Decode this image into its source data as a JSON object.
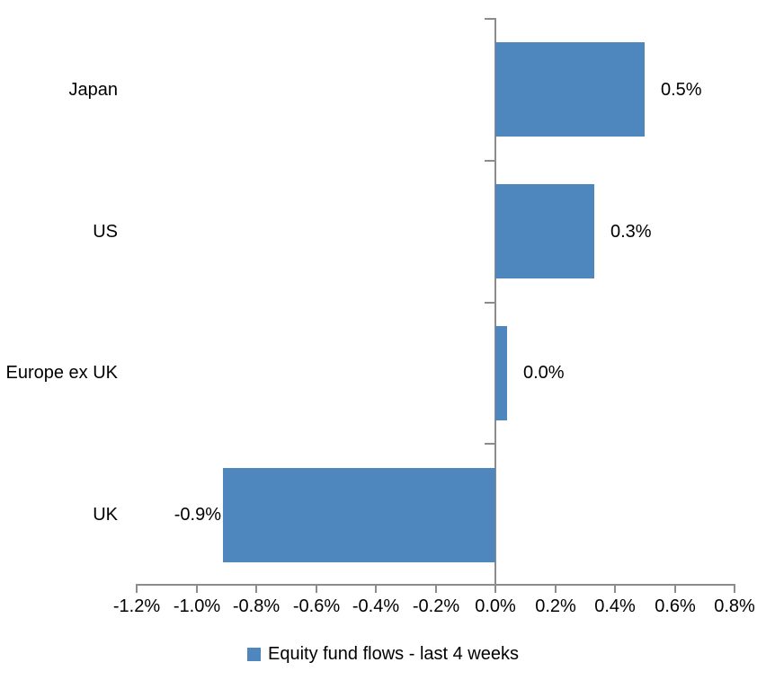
{
  "chart_data": {
    "type": "bar",
    "orientation": "horizontal",
    "categories": [
      "Japan",
      "US",
      "Europe ex UK",
      "UK"
    ],
    "values": [
      0.5,
      0.33,
      0.04,
      -0.91
    ],
    "data_labels": [
      "0.5%",
      "0.3%",
      "0.0%",
      "-0.9%"
    ],
    "series": [
      {
        "name": "Equity fund flows - last 4 weeks",
        "values": [
          0.5,
          0.33,
          0.04,
          -0.91
        ]
      }
    ],
    "legend": {
      "label": "Equity fund flows - last 4 weeks",
      "position": "bottom"
    },
    "x_axis": {
      "min": -1.2,
      "max": 0.8,
      "tick_step": 0.2,
      "unit": "%",
      "tick_labels": [
        "-1.2%",
        "-1.0%",
        "-0.8%",
        "-0.6%",
        "-0.4%",
        "-0.2%",
        "0.0%",
        "0.2%",
        "0.4%",
        "0.6%",
        "0.8%"
      ]
    },
    "grid": false,
    "colors": {
      "bar": "#4e86be",
      "axis": "#8c8c8c",
      "text": "#000000",
      "background": "#ffffff"
    }
  }
}
